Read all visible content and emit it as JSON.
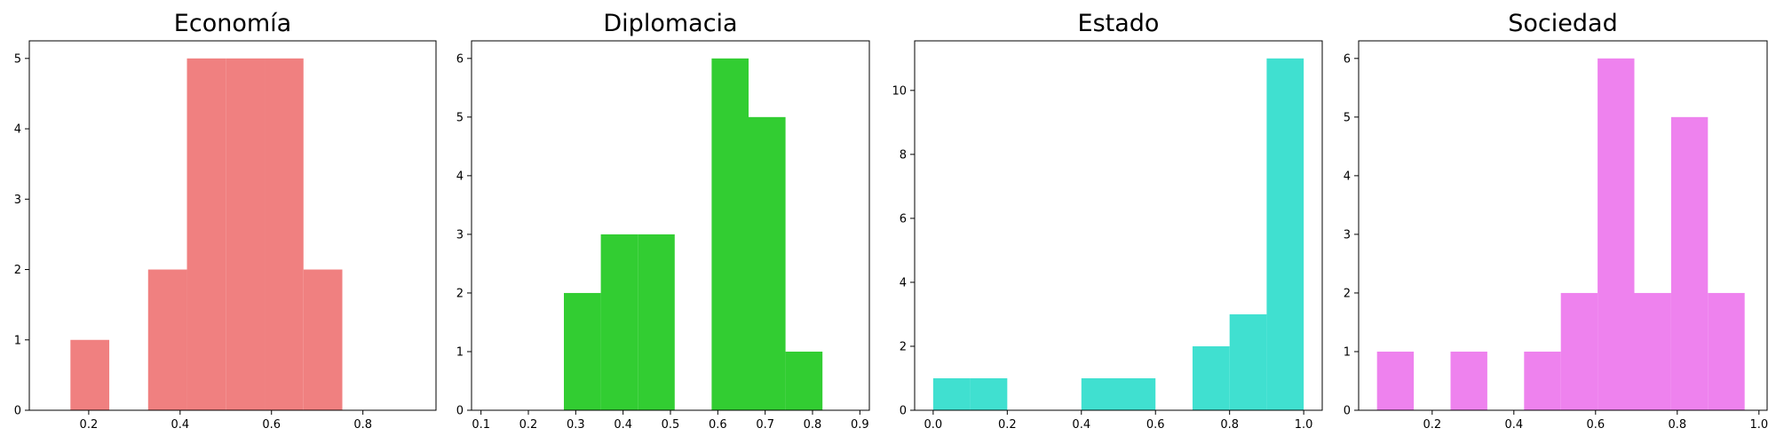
{
  "chart_data": [
    {
      "type": "bar",
      "title": "Economía",
      "color": "#f08080",
      "xlim": [
        0.07,
        0.96
      ],
      "ylim": [
        0,
        5.25
      ],
      "xticks": [
        "0.2",
        "0.4",
        "0.6",
        "0.8"
      ],
      "yticks": [
        "0",
        "1",
        "2",
        "3",
        "4",
        "5"
      ],
      "bins": [
        {
          "x0": 0.16,
          "x1": 0.245,
          "count": 1
        },
        {
          "x0": 0.245,
          "x1": 0.33,
          "count": 0
        },
        {
          "x0": 0.33,
          "x1": 0.415,
          "count": 2
        },
        {
          "x0": 0.415,
          "x1": 0.5,
          "count": 5
        },
        {
          "x0": 0.5,
          "x1": 0.585,
          "count": 5
        },
        {
          "x0": 0.585,
          "x1": 0.67,
          "count": 5
        },
        {
          "x0": 0.67,
          "x1": 0.755,
          "count": 2
        }
      ]
    },
    {
      "type": "bar",
      "title": "Diplomacia",
      "color": "#32cd32",
      "xlim": [
        0.08,
        0.92
      ],
      "ylim": [
        0,
        6.3
      ],
      "xticks": [
        "0.1",
        "0.2",
        "0.3",
        "0.4",
        "0.5",
        "0.6",
        "0.7",
        "0.8",
        "0.9"
      ],
      "yticks": [
        "0",
        "1",
        "2",
        "3",
        "4",
        "5",
        "6"
      ],
      "bins": [
        {
          "x0": 0.275,
          "x1": 0.353,
          "count": 2
        },
        {
          "x0": 0.353,
          "x1": 0.431,
          "count": 3
        },
        {
          "x0": 0.431,
          "x1": 0.509,
          "count": 3
        },
        {
          "x0": 0.509,
          "x1": 0.587,
          "count": 0
        },
        {
          "x0": 0.587,
          "x1": 0.665,
          "count": 6
        },
        {
          "x0": 0.665,
          "x1": 0.743,
          "count": 5
        },
        {
          "x0": 0.743,
          "x1": 0.821,
          "count": 1
        }
      ]
    },
    {
      "type": "bar",
      "title": "Estado",
      "color": "#40e0d0",
      "xlim": [
        -0.05,
        1.05
      ],
      "ylim": [
        0,
        11.55
      ],
      "xticks": [
        "0.0",
        "0.2",
        "0.4",
        "0.6",
        "0.8",
        "1.0"
      ],
      "yticks": [
        "0",
        "2",
        "4",
        "6",
        "8",
        "10"
      ],
      "bins": [
        {
          "x0": 0.0,
          "x1": 0.1,
          "count": 1
        },
        {
          "x0": 0.1,
          "x1": 0.2,
          "count": 1
        },
        {
          "x0": 0.2,
          "x1": 0.3,
          "count": 0
        },
        {
          "x0": 0.3,
          "x1": 0.4,
          "count": 0
        },
        {
          "x0": 0.4,
          "x1": 0.5,
          "count": 1
        },
        {
          "x0": 0.5,
          "x1": 0.6,
          "count": 1
        },
        {
          "x0": 0.6,
          "x1": 0.7,
          "count": 0
        },
        {
          "x0": 0.7,
          "x1": 0.8,
          "count": 2
        },
        {
          "x0": 0.8,
          "x1": 0.9,
          "count": 3
        },
        {
          "x0": 0.9,
          "x1": 1.0,
          "count": 11
        }
      ]
    },
    {
      "type": "bar",
      "title": "Sociedad",
      "color": "#ee82ee",
      "xlim": [
        0.02,
        1.02
      ],
      "ylim": [
        0,
        6.3
      ],
      "xticks": [
        "0.2",
        "0.4",
        "0.6",
        "0.8",
        "1.0"
      ],
      "yticks": [
        "0",
        "1",
        "2",
        "3",
        "4",
        "5",
        "6"
      ],
      "bins": [
        {
          "x0": 0.065,
          "x1": 0.155,
          "count": 1
        },
        {
          "x0": 0.155,
          "x1": 0.245,
          "count": 0
        },
        {
          "x0": 0.245,
          "x1": 0.335,
          "count": 1
        },
        {
          "x0": 0.335,
          "x1": 0.425,
          "count": 0
        },
        {
          "x0": 0.425,
          "x1": 0.515,
          "count": 1
        },
        {
          "x0": 0.515,
          "x1": 0.605,
          "count": 2
        },
        {
          "x0": 0.605,
          "x1": 0.695,
          "count": 6
        },
        {
          "x0": 0.695,
          "x1": 0.785,
          "count": 2
        },
        {
          "x0": 0.785,
          "x1": 0.875,
          "count": 5
        },
        {
          "x0": 0.875,
          "x1": 0.965,
          "count": 2
        }
      ]
    }
  ]
}
